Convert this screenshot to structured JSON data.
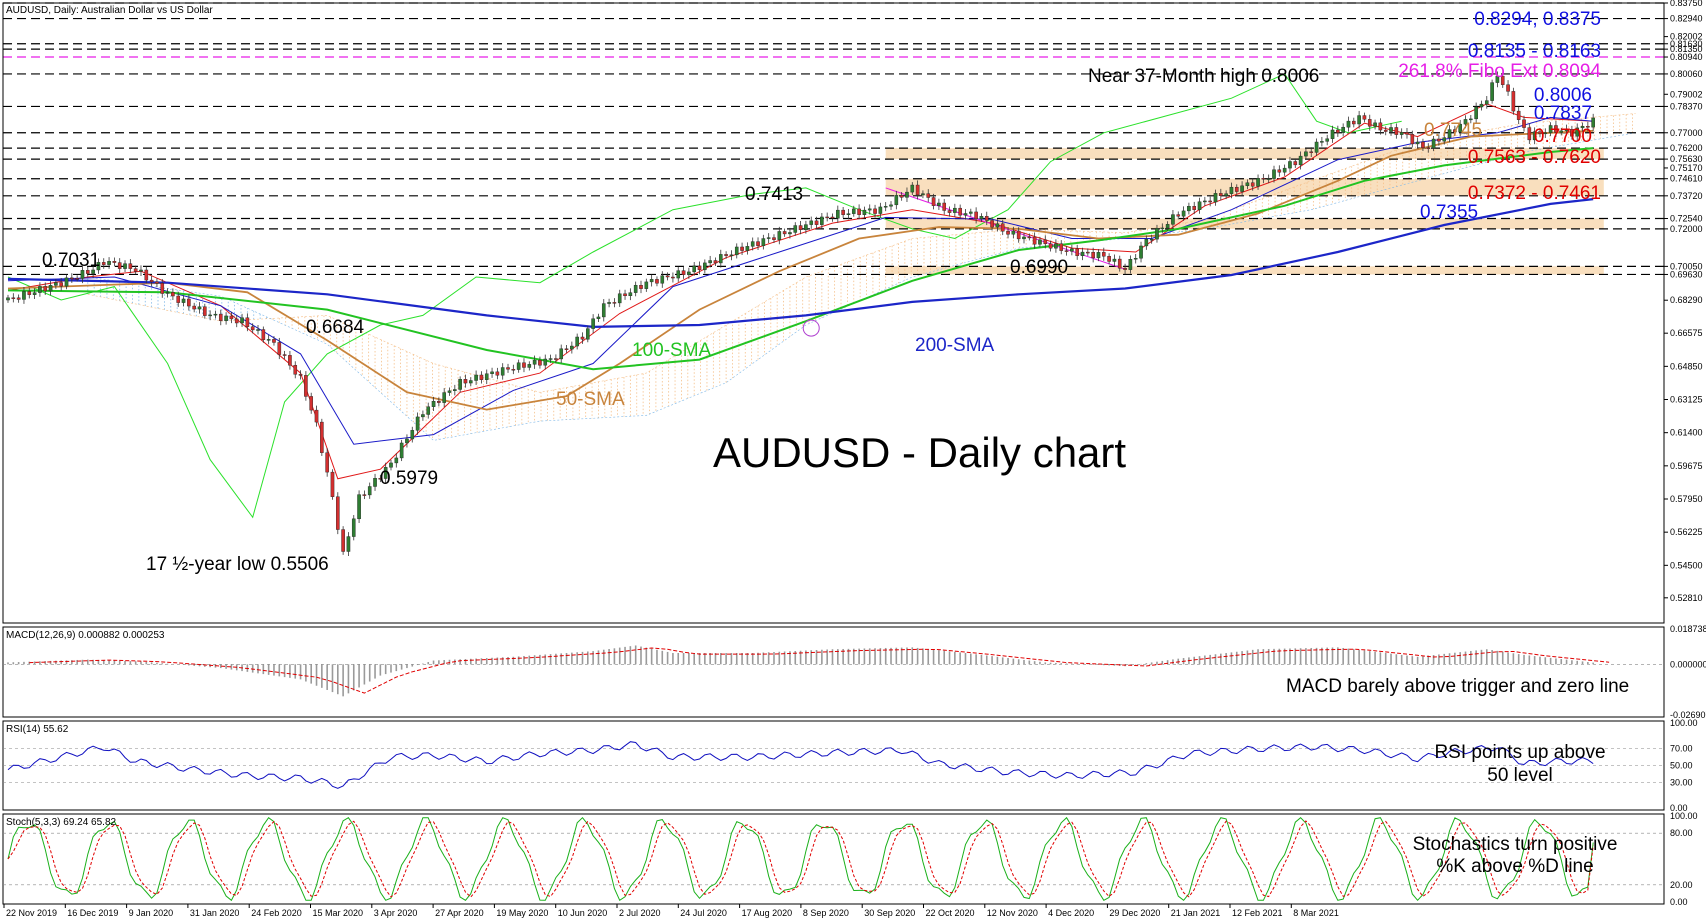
{
  "header": {
    "symbol_title": "AUDUSD, Daily:  Australian Dollar vs US Dollar"
  },
  "colors": {
    "bull": "#2e7d32",
    "bear": "#d32f2f",
    "sma50": "#c8843c",
    "sma100": "#22c322",
    "sma200": "#1c26c8",
    "tenkan": "#e01818",
    "kijun": "#1a1ac8",
    "chikou": "#2be12b",
    "cloud": "#f5c08a",
    "fibo": "#e61ee6",
    "support": "#e00000",
    "resistance": "#1010e0",
    "band": "#f7d4a8"
  },
  "chart_data": [
    {
      "type": "candlestick",
      "title": "AUDUSD - Daily chart",
      "xlabel": "",
      "ylabel": "",
      "x_ticks": [
        "22 Nov 2019",
        "16 Dec 2019",
        "9 Jan 2020",
        "31 Jan 2020",
        "24 Feb 2020",
        "15 Mar 2020",
        "3 Apr 2020",
        "27 Apr 2020",
        "19 May 2020",
        "10 Jun 2020",
        "2 Jul 2020",
        "24 Jul 2020",
        "17 Aug 2020",
        "8 Sep 2020",
        "30 Sep 2020",
        "22 Oct 2020",
        "12 Nov 2020",
        "4 Dec 2020",
        "29 Dec 2020",
        "21 Jan 2021",
        "12 Feb 2021",
        "8 Mar 2021"
      ],
      "y_ticks": [
        "0.83750",
        "0.82940",
        "0.82002",
        "0.81630",
        "0.81350",
        "0.80940",
        "0.80060",
        "0.79002",
        "0.78370",
        "0.77000",
        "0.76200",
        "0.75630",
        "0.75170",
        "0.74610",
        "0.73720",
        "0.72540",
        "0.72000",
        "0.70050",
        "0.69630",
        "0.68290",
        "0.66575",
        "0.64850",
        "0.63125",
        "0.61400",
        "0.59675",
        "0.57950",
        "0.56225",
        "0.54500",
        "0.52810"
      ],
      "ylim": [
        0.515,
        0.8375
      ],
      "price_path": [
        [
          0,
          0.683
        ],
        [
          10,
          0.692
        ],
        [
          16,
          0.699
        ],
        [
          18,
          0.7031
        ],
        [
          24,
          0.699
        ],
        [
          30,
          0.686
        ],
        [
          38,
          0.675
        ],
        [
          44,
          0.672
        ],
        [
          50,
          0.66
        ],
        [
          55,
          0.642
        ],
        [
          58,
          0.618
        ],
        [
          61,
          0.58
        ],
        [
          63,
          0.5506
        ],
        [
          66,
          0.58
        ],
        [
          72,
          0.5979
        ],
        [
          78,
          0.625
        ],
        [
          85,
          0.64
        ],
        [
          95,
          0.648
        ],
        [
          102,
          0.652
        ],
        [
          108,
          0.664
        ],
        [
          112,
          0.68
        ],
        [
          120,
          0.692
        ],
        [
          128,
          0.698
        ],
        [
          138,
          0.71
        ],
        [
          148,
          0.72
        ],
        [
          156,
          0.728
        ],
        [
          164,
          0.73
        ],
        [
          170,
          0.7413
        ],
        [
          176,
          0.73
        ],
        [
          182,
          0.727
        ],
        [
          188,
          0.718
        ],
        [
          194,
          0.713
        ],
        [
          200,
          0.708
        ],
        [
          206,
          0.706
        ],
        [
          210,
          0.699
        ],
        [
          214,
          0.714
        ],
        [
          220,
          0.728
        ],
        [
          228,
          0.738
        ],
        [
          236,
          0.746
        ],
        [
          242,
          0.755
        ],
        [
          248,
          0.768
        ],
        [
          254,
          0.778
        ],
        [
          258,
          0.772
        ],
        [
          262,
          0.77
        ],
        [
          266,
          0.762
        ],
        [
          270,
          0.768
        ],
        [
          274,
          0.776
        ],
        [
          278,
          0.788
        ],
        [
          280,
          0.8006
        ],
        [
          282,
          0.79
        ],
        [
          284,
          0.776
        ],
        [
          286,
          0.768
        ],
        [
          290,
          0.772
        ],
        [
          294,
          0.77
        ],
        [
          298,
          0.776
        ],
        [
          300,
          0.776
        ]
      ],
      "sma50": [
        [
          0,
          0.689
        ],
        [
          30,
          0.692
        ],
        [
          45,
          0.687
        ],
        [
          60,
          0.662
        ],
        [
          75,
          0.635
        ],
        [
          90,
          0.626
        ],
        [
          105,
          0.633
        ],
        [
          115,
          0.65
        ],
        [
          130,
          0.678
        ],
        [
          145,
          0.698
        ],
        [
          160,
          0.715
        ],
        [
          175,
          0.721
        ],
        [
          190,
          0.72
        ],
        [
          205,
          0.715
        ],
        [
          220,
          0.717
        ],
        [
          235,
          0.728
        ],
        [
          250,
          0.745
        ],
        [
          260,
          0.758
        ],
        [
          275,
          0.768
        ],
        [
          290,
          0.77
        ],
        [
          298,
          0.771
        ]
      ],
      "sma100": [
        [
          0,
          0.688
        ],
        [
          30,
          0.687
        ],
        [
          60,
          0.678
        ],
        [
          90,
          0.657
        ],
        [
          110,
          0.647
        ],
        [
          130,
          0.652
        ],
        [
          150,
          0.672
        ],
        [
          170,
          0.693
        ],
        [
          190,
          0.709
        ],
        [
          205,
          0.714
        ],
        [
          220,
          0.72
        ],
        [
          240,
          0.732
        ],
        [
          255,
          0.745
        ],
        [
          270,
          0.753
        ],
        [
          290,
          0.76
        ],
        [
          298,
          0.762
        ]
      ],
      "sma200": [
        [
          0,
          0.694
        ],
        [
          30,
          0.692
        ],
        [
          60,
          0.686
        ],
        [
          90,
          0.675
        ],
        [
          110,
          0.669
        ],
        [
          130,
          0.67
        ],
        [
          150,
          0.675
        ],
        [
          170,
          0.682
        ],
        [
          190,
          0.686
        ],
        [
          210,
          0.689
        ],
        [
          230,
          0.696
        ],
        [
          250,
          0.708
        ],
        [
          270,
          0.722
        ],
        [
          290,
          0.733
        ],
        [
          298,
          0.7355
        ]
      ],
      "tenkan": [
        [
          0,
          0.688
        ],
        [
          15,
          0.695
        ],
        [
          25,
          0.698
        ],
        [
          40,
          0.68
        ],
        [
          55,
          0.645
        ],
        [
          62,
          0.59
        ],
        [
          70,
          0.595
        ],
        [
          85,
          0.635
        ],
        [
          100,
          0.645
        ],
        [
          115,
          0.676
        ],
        [
          135,
          0.705
        ],
        [
          155,
          0.723
        ],
        [
          170,
          0.73
        ],
        [
          185,
          0.723
        ],
        [
          200,
          0.71
        ],
        [
          212,
          0.708
        ],
        [
          225,
          0.732
        ],
        [
          240,
          0.747
        ],
        [
          255,
          0.775
        ],
        [
          265,
          0.768
        ],
        [
          278,
          0.785
        ],
        [
          285,
          0.778
        ],
        [
          298,
          0.776
        ]
      ],
      "kijun": [
        [
          0,
          0.693
        ],
        [
          20,
          0.695
        ],
        [
          40,
          0.68
        ],
        [
          55,
          0.655
        ],
        [
          65,
          0.608
        ],
        [
          80,
          0.613
        ],
        [
          95,
          0.636
        ],
        [
          110,
          0.65
        ],
        [
          125,
          0.69
        ],
        [
          145,
          0.708
        ],
        [
          165,
          0.726
        ],
        [
          185,
          0.725
        ],
        [
          200,
          0.715
        ],
        [
          215,
          0.715
        ],
        [
          230,
          0.73
        ],
        [
          250,
          0.756
        ],
        [
          265,
          0.765
        ],
        [
          280,
          0.77
        ],
        [
          290,
          0.778
        ],
        [
          298,
          0.776
        ]
      ],
      "chikou": [
        [
          0,
          0.695
        ],
        [
          10,
          0.683
        ],
        [
          20,
          0.69
        ],
        [
          30,
          0.65
        ],
        [
          38,
          0.6
        ],
        [
          46,
          0.57
        ],
        [
          52,
          0.63
        ],
        [
          60,
          0.655
        ],
        [
          70,
          0.67
        ],
        [
          78,
          0.675
        ],
        [
          88,
          0.695
        ],
        [
          100,
          0.692
        ],
        [
          110,
          0.708
        ],
        [
          125,
          0.73
        ],
        [
          140,
          0.738
        ],
        [
          150,
          0.7413
        ],
        [
          160,
          0.73
        ],
        [
          170,
          0.72
        ],
        [
          178,
          0.715
        ],
        [
          188,
          0.73
        ],
        [
          196,
          0.755
        ],
        [
          206,
          0.77
        ],
        [
          218,
          0.779
        ],
        [
          230,
          0.788
        ],
        [
          240,
          0.8006
        ],
        [
          246,
          0.776
        ],
        [
          252,
          0.77
        ],
        [
          262,
          0.776
        ]
      ],
      "cloud_a": [
        [
          15,
          0.686
        ],
        [
          40,
          0.672
        ],
        [
          60,
          0.675
        ],
        [
          80,
          0.65
        ],
        [
          100,
          0.635
        ],
        [
          120,
          0.645
        ],
        [
          135,
          0.67
        ],
        [
          150,
          0.695
        ],
        [
          170,
          0.715
        ],
        [
          190,
          0.72
        ],
        [
          210,
          0.718
        ],
        [
          225,
          0.725
        ],
        [
          245,
          0.745
        ],
        [
          265,
          0.765
        ],
        [
          285,
          0.775
        ],
        [
          306,
          0.78
        ]
      ],
      "cloud_b": [
        [
          15,
          0.695
        ],
        [
          40,
          0.685
        ],
        [
          60,
          0.66
        ],
        [
          80,
          0.61
        ],
        [
          100,
          0.62
        ],
        [
          120,
          0.623
        ],
        [
          135,
          0.64
        ],
        [
          150,
          0.67
        ],
        [
          170,
          0.695
        ],
        [
          190,
          0.71
        ],
        [
          210,
          0.715
        ],
        [
          225,
          0.72
        ],
        [
          245,
          0.73
        ],
        [
          265,
          0.745
        ],
        [
          285,
          0.76
        ],
        [
          306,
          0.77
        ]
      ],
      "levels": [
        {
          "price": 0.8375,
          "color": "black"
        },
        {
          "price": 0.8294,
          "color": "black"
        },
        {
          "price": 0.8163,
          "color": "black"
        },
        {
          "price": 0.8135,
          "color": "black"
        },
        {
          "price": 0.8094,
          "color": "fibo"
        },
        {
          "price": 0.8006,
          "color": "black"
        },
        {
          "price": 0.7837,
          "color": "black"
        },
        {
          "price": 0.77,
          "color": "black"
        },
        {
          "price": 0.762,
          "color": "black"
        },
        {
          "price": 0.7563,
          "color": "black"
        },
        {
          "price": 0.7461,
          "color": "black"
        },
        {
          "price": 0.7372,
          "color": "black"
        },
        {
          "price": 0.7254,
          "color": "black"
        },
        {
          "price": 0.72,
          "color": "black"
        },
        {
          "price": 0.7005,
          "color": "black"
        },
        {
          "price": 0.6963,
          "color": "black"
        }
      ],
      "bands": [
        [
          0.7563,
          0.762
        ],
        [
          0.7372,
          0.7461
        ],
        [
          0.72,
          0.7254
        ],
        [
          0.6963,
          0.7005
        ]
      ],
      "sma_labels": {
        "sma50": "50-SMA",
        "sma100": "100-SMA",
        "sma200": "200-SMA"
      },
      "annotations": {
        "r1": "0.8294, 0.8375",
        "r2": "0.8135 - 0.8163",
        "fibo": "261.8% Fibo Ext 0.8094",
        "high": "Near 37-Month high 0.8006",
        "r3": "0.8006",
        "r4": "0.7837",
        "cloud_val": "0.7745",
        "s1": "0.7700",
        "s2": "0.7563 - 0.7620",
        "s3": "0.7372 - 0.7461",
        "s4": "0.7355",
        "p7413": "0.7413",
        "p7031": "0.7031",
        "p6684": "0.6684",
        "p6990": "0.6990",
        "p5979": "0.5979",
        "low": "17 ½-year low 0.5506"
      }
    },
    {
      "type": "histogram",
      "title": "MACD(12,26,9) 0.000882 0.000253",
      "y_ticks": [
        "0.018738",
        "0.000000",
        "-0.026907"
      ],
      "ylim": [
        -0.026907,
        0.018738
      ],
      "histogram_path": [
        [
          0,
          0.001
        ],
        [
          15,
          0.0025
        ],
        [
          25,
          0.0015
        ],
        [
          40,
          -0.002
        ],
        [
          55,
          -0.008
        ],
        [
          63,
          -0.017
        ],
        [
          70,
          -0.006
        ],
        [
          80,
          0.002
        ],
        [
          95,
          0.004
        ],
        [
          110,
          0.007
        ],
        [
          118,
          0.01
        ],
        [
          125,
          0.006
        ],
        [
          140,
          0.006
        ],
        [
          155,
          0.008
        ],
        [
          170,
          0.009
        ],
        [
          180,
          0.006
        ],
        [
          195,
          0.001
        ],
        [
          210,
          -0.001
        ],
        [
          220,
          0.003
        ],
        [
          235,
          0.008
        ],
        [
          250,
          0.009
        ],
        [
          265,
          0.004
        ],
        [
          278,
          0.008
        ],
        [
          285,
          0.005
        ],
        [
          298,
          0.0009
        ]
      ],
      "annotation": "MACD barely above trigger and zero line"
    },
    {
      "type": "line",
      "title": "RSI(14) 55.62",
      "y_ticks": [
        "100.00",
        "70.00",
        "50.00",
        "30.00",
        "0.00"
      ],
      "ylim": [
        0,
        100
      ],
      "levels": [
        30,
        50,
        70
      ],
      "rsi_path": [
        [
          0,
          45
        ],
        [
          10,
          60
        ],
        [
          18,
          72
        ],
        [
          24,
          55
        ],
        [
          35,
          45
        ],
        [
          45,
          38
        ],
        [
          55,
          35
        ],
        [
          60,
          30
        ],
        [
          63,
          25
        ],
        [
          68,
          45
        ],
        [
          72,
          60
        ],
        [
          80,
          62
        ],
        [
          90,
          55
        ],
        [
          100,
          64
        ],
        [
          110,
          68
        ],
        [
          118,
          75
        ],
        [
          125,
          60
        ],
        [
          140,
          60
        ],
        [
          155,
          65
        ],
        [
          168,
          68
        ],
        [
          175,
          52
        ],
        [
          188,
          42
        ],
        [
          200,
          38
        ],
        [
          212,
          42
        ],
        [
          222,
          64
        ],
        [
          236,
          70
        ],
        [
          246,
          72
        ],
        [
          255,
          68
        ],
        [
          265,
          58
        ],
        [
          272,
          66
        ],
        [
          280,
          72
        ],
        [
          285,
          52
        ],
        [
          292,
          55
        ],
        [
          298,
          55.62
        ]
      ],
      "annotation": [
        "RSI points up above",
        "50 level"
      ]
    },
    {
      "type": "line",
      "title": "Stoch(5,3,3) 69.24 65.82",
      "y_ticks": [
        "100.00",
        "80.00",
        "20.00",
        "0.00"
      ],
      "ylim": [
        0,
        100
      ],
      "levels": [
        20,
        80
      ],
      "k_last": 69.24,
      "d_last": 65.82,
      "annotation": [
        "Stochastics turn positive",
        "%K above %D line"
      ]
    }
  ]
}
